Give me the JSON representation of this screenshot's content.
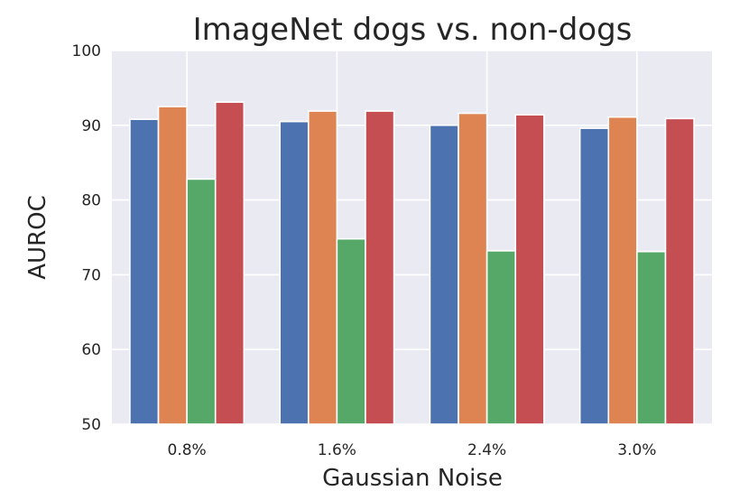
{
  "chart_data": {
    "type": "bar",
    "title": "ImageNet dogs vs. non-dogs",
    "xlabel": "Gaussian Noise",
    "ylabel": "AUROC",
    "categories": [
      "0.8%",
      "1.6%",
      "2.4%",
      "3.0%"
    ],
    "ylim": [
      50,
      100
    ],
    "yticks": [
      50,
      60,
      70,
      80,
      90,
      100
    ],
    "grid": true,
    "background": "#EAEAF2",
    "series": [
      {
        "color": "#4C72B0",
        "values": [
          90.8,
          90.5,
          90.0,
          89.6
        ]
      },
      {
        "color": "#DD8452",
        "values": [
          92.5,
          91.9,
          91.6,
          91.1
        ]
      },
      {
        "color": "#55A868",
        "values": [
          82.8,
          74.8,
          73.2,
          73.1
        ]
      },
      {
        "color": "#C44E52",
        "values": [
          93.1,
          91.9,
          91.4,
          90.9
        ]
      }
    ]
  }
}
